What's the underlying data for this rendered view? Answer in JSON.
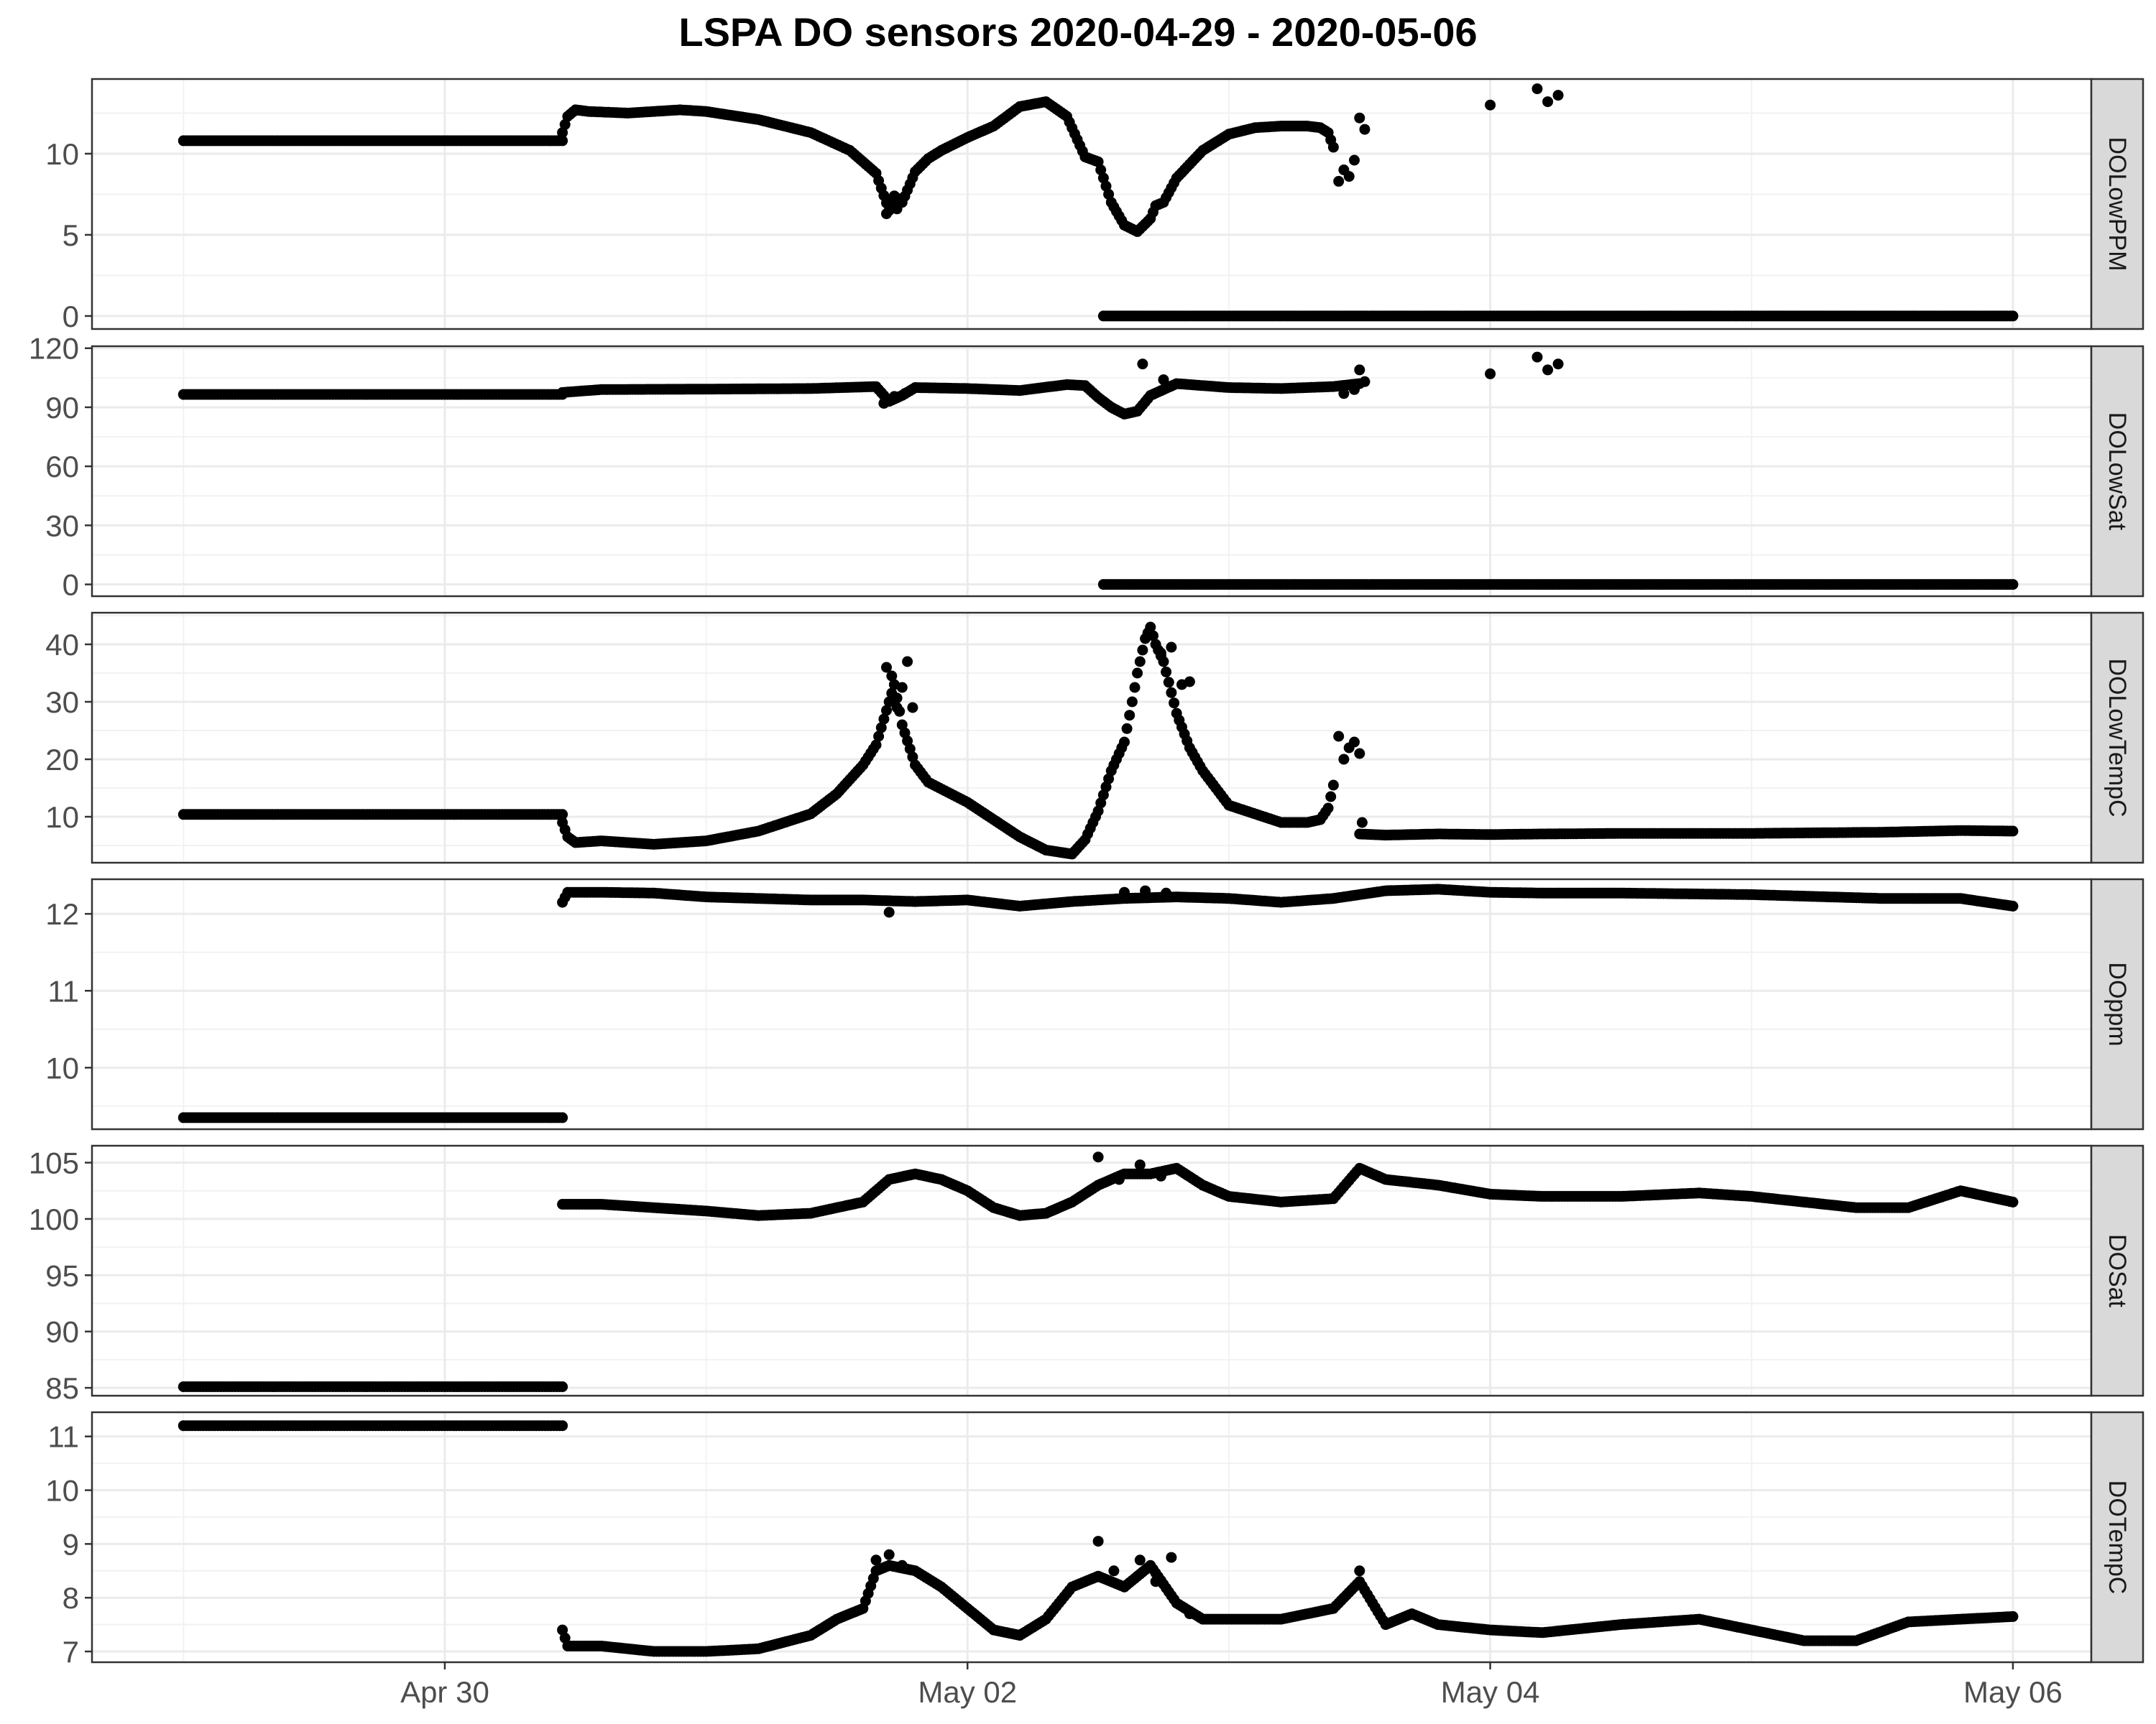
{
  "chart_data": {
    "type": "scatter",
    "title": "LSPA DO sensors 2020-04-29 - 2020-05-06",
    "xlabel": "",
    "ylabel": "",
    "x_unit": "days since 2020-04-29 00:00",
    "x_ticks": [
      {
        "x": 1,
        "label": "Apr 30"
      },
      {
        "x": 3,
        "label": "May 02"
      },
      {
        "x": 5,
        "label": "May 04"
      },
      {
        "x": 7,
        "label": "May 06"
      }
    ],
    "xlim": [
      -0.35,
      7.3
    ],
    "grid": true,
    "point_color": "#000000",
    "strip_fill": "#d9d9d9",
    "panels": [
      {
        "name": "DOLowPPM",
        "ylim": [
          -0.8,
          14.6
        ],
        "y_ticks": [
          0,
          5,
          10
        ],
        "segments": [
          {
            "x": [
              0.0,
              1.45
            ],
            "y": [
              10.8,
              10.8
            ]
          },
          {
            "x": [
              1.45,
              1.47,
              1.5,
              1.55,
              1.7,
              1.9,
              2.0,
              2.2,
              2.4,
              2.55,
              2.65,
              2.7,
              2.72,
              2.75,
              2.8,
              2.85,
              2.9,
              3.0,
              3.1,
              3.2,
              3.3,
              3.38,
              3.45,
              3.5,
              3.55,
              3.6,
              3.65,
              3.7,
              3.72,
              3.75,
              3.8,
              3.9,
              4.0,
              4.1,
              4.2,
              4.3,
              4.35,
              4.38,
              4.4
            ],
            "y": [
              11.3,
              12.3,
              12.7,
              12.6,
              12.5,
              12.7,
              12.6,
              12.1,
              11.3,
              10.2,
              8.8,
              6.5,
              7.4,
              7.0,
              8.9,
              9.7,
              10.2,
              11.0,
              11.7,
              12.9,
              13.2,
              12.3,
              9.8,
              9.5,
              7.0,
              5.6,
              5.2,
              6.0,
              6.8,
              7.0,
              8.5,
              10.2,
              11.2,
              11.6,
              11.7,
              11.7,
              11.6,
              11.3,
              10.4
            ]
          },
          {
            "x": [
              3.52,
              7.0
            ],
            "y": [
              0.0,
              0.0
            ]
          }
        ],
        "scatter": [
          {
            "x": 2.69,
            "y": 6.3
          },
          {
            "x": 2.71,
            "y": 7.2
          },
          {
            "x": 2.73,
            "y": 6.6
          },
          {
            "x": 4.42,
            "y": 8.3
          },
          {
            "x": 4.44,
            "y": 9.0
          },
          {
            "x": 4.46,
            "y": 8.6
          },
          {
            "x": 4.48,
            "y": 9.6
          },
          {
            "x": 4.5,
            "y": 12.2
          },
          {
            "x": 4.52,
            "y": 11.5
          },
          {
            "x": 5.0,
            "y": 13.0
          },
          {
            "x": 5.18,
            "y": 14.0
          },
          {
            "x": 5.22,
            "y": 13.2
          },
          {
            "x": 5.26,
            "y": 13.6
          }
        ]
      },
      {
        "name": "DOLowSat",
        "ylim": [
          -6,
          121
        ],
        "y_ticks": [
          0,
          30,
          60,
          90,
          120
        ],
        "segments": [
          {
            "x": [
              0.0,
              1.45
            ],
            "y": [
              96.5,
              96.5
            ]
          },
          {
            "x": [
              1.45,
              1.6,
              2.0,
              2.4,
              2.65,
              2.7,
              2.75,
              2.8,
              3.0,
              3.2,
              3.38,
              3.45,
              3.5,
              3.55,
              3.6,
              3.65,
              3.7,
              3.8,
              4.0,
              4.2,
              4.4,
              4.5
            ],
            "y": [
              97.5,
              99.0,
              99.2,
              99.5,
              100.5,
              93.0,
              96.0,
              100.0,
              99.5,
              98.5,
              101.5,
              101.0,
              95.0,
              90.0,
              86.5,
              88.0,
              96.0,
              102.0,
              100.0,
              99.5,
              100.5,
              102.0
            ]
          },
          {
            "x": [
              3.52,
              7.0
            ],
            "y": [
              0.0,
              0.0
            ]
          }
        ],
        "scatter": [
          {
            "x": 2.68,
            "y": 92.0
          },
          {
            "x": 2.72,
            "y": 95.5
          },
          {
            "x": 2.76,
            "y": 97.0
          },
          {
            "x": 3.67,
            "y": 112.0
          },
          {
            "x": 3.75,
            "y": 104.0
          },
          {
            "x": 4.44,
            "y": 97.0
          },
          {
            "x": 4.48,
            "y": 99.0
          },
          {
            "x": 4.5,
            "y": 109.0
          },
          {
            "x": 4.52,
            "y": 103.0
          },
          {
            "x": 5.0,
            "y": 107.0
          },
          {
            "x": 5.18,
            "y": 115.5
          },
          {
            "x": 5.22,
            "y": 109.0
          },
          {
            "x": 5.26,
            "y": 112.0
          }
        ]
      },
      {
        "name": "DOLowTempC",
        "ylim": [
          2,
          45.5
        ],
        "y_ticks": [
          10,
          20,
          30,
          40
        ],
        "segments": [
          {
            "x": [
              0.0,
              1.45
            ],
            "y": [
              10.4,
              10.4
            ]
          },
          {
            "x": [
              1.45,
              1.47,
              1.5,
              1.6,
              1.8,
              2.0,
              2.2,
              2.4,
              2.5,
              2.6,
              2.65,
              2.68,
              2.7,
              2.72,
              2.75,
              2.8,
              2.85,
              3.0,
              3.1,
              3.2,
              3.3,
              3.4,
              3.45,
              3.5,
              3.55,
              3.6,
              3.63,
              3.65,
              3.68,
              3.7,
              3.72,
              3.75,
              3.8,
              3.85,
              3.9,
              4.0,
              4.2,
              4.3,
              4.35,
              4.38,
              4.4
            ],
            "y": [
              9.0,
              6.5,
              5.5,
              5.8,
              5.2,
              5.8,
              7.5,
              10.5,
              14.0,
              19.0,
              22.5,
              27.0,
              30.0,
              33.0,
              26.0,
              19.0,
              16.0,
              12.5,
              9.5,
              6.5,
              4.2,
              3.5,
              6.0,
              11.0,
              18.0,
              23.0,
              30.0,
              35.0,
              41.0,
              43.0,
              40.0,
              37.0,
              28.0,
              22.0,
              18.0,
              12.0,
              9.0,
              9.0,
              9.5,
              11.5,
              15.5
            ]
          },
          {
            "x": [
              4.5,
              4.6,
              4.8,
              5.0,
              5.2,
              5.5,
              6.0,
              6.5,
              6.8,
              7.0
            ],
            "y": [
              7.0,
              6.8,
              7.0,
              6.9,
              7.0,
              7.1,
              7.1,
              7.3,
              7.6,
              7.5
            ]
          }
        ],
        "scatter": [
          {
            "x": 2.69,
            "y": 36.0
          },
          {
            "x": 2.71,
            "y": 34.5
          },
          {
            "x": 2.73,
            "y": 29.0
          },
          {
            "x": 2.75,
            "y": 32.5
          },
          {
            "x": 2.77,
            "y": 37.0
          },
          {
            "x": 2.79,
            "y": 29.0
          },
          {
            "x": 3.74,
            "y": 38.5
          },
          {
            "x": 3.78,
            "y": 39.5
          },
          {
            "x": 3.82,
            "y": 33.0
          },
          {
            "x": 3.85,
            "y": 33.5
          },
          {
            "x": 4.42,
            "y": 24.0
          },
          {
            "x": 4.44,
            "y": 20.0
          },
          {
            "x": 4.46,
            "y": 22.0
          },
          {
            "x": 4.48,
            "y": 23.0
          },
          {
            "x": 4.5,
            "y": 21.0
          },
          {
            "x": 4.51,
            "y": 9.0
          }
        ]
      },
      {
        "name": "DOppm",
        "ylim": [
          9.2,
          12.45
        ],
        "y_ticks": [
          10,
          11,
          12
        ],
        "segments": [
          {
            "x": [
              0.0,
              1.45
            ],
            "y": [
              9.35,
              9.35
            ]
          },
          {
            "x": [
              1.45,
              1.47,
              1.6,
              1.8,
              2.0,
              2.2,
              2.4,
              2.6,
              2.8,
              3.0,
              3.2,
              3.4,
              3.6,
              3.8,
              4.0,
              4.2,
              4.4,
              4.6,
              4.8,
              5.0,
              5.2,
              5.5,
              6.0,
              6.5,
              6.8,
              7.0
            ],
            "y": [
              12.15,
              12.28,
              12.28,
              12.27,
              12.22,
              12.2,
              12.18,
              12.18,
              12.16,
              12.18,
              12.1,
              12.16,
              12.2,
              12.22,
              12.2,
              12.15,
              12.2,
              12.3,
              12.32,
              12.28,
              12.27,
              12.27,
              12.25,
              12.2,
              12.2,
              12.1
            ]
          }
        ],
        "scatter": [
          {
            "x": 2.7,
            "y": 12.02
          },
          {
            "x": 3.6,
            "y": 12.28
          },
          {
            "x": 3.68,
            "y": 12.3
          },
          {
            "x": 3.76,
            "y": 12.27
          }
        ]
      },
      {
        "name": "DOSat",
        "ylim": [
          84.3,
          106.5
        ],
        "y_ticks": [
          85,
          90,
          95,
          100,
          105
        ],
        "segments": [
          {
            "x": [
              0.0,
              1.45
            ],
            "y": [
              85.1,
              85.1
            ]
          },
          {
            "x": [
              1.45,
              1.6,
              1.8,
              2.0,
              2.2,
              2.4,
              2.6,
              2.7,
              2.8,
              2.9,
              3.0,
              3.1,
              3.2,
              3.3,
              3.4,
              3.5,
              3.6,
              3.7,
              3.8,
              3.9,
              4.0,
              4.2,
              4.4,
              4.5,
              4.6,
              4.8,
              5.0,
              5.2,
              5.5,
              5.8,
              6.0,
              6.2,
              6.4,
              6.6,
              6.8,
              7.0
            ],
            "y": [
              101.3,
              101.3,
              101.0,
              100.7,
              100.3,
              100.5,
              101.5,
              103.5,
              104.0,
              103.5,
              102.5,
              101.0,
              100.3,
              100.5,
              101.5,
              103.0,
              104.0,
              104.0,
              104.5,
              103.0,
              102.0,
              101.5,
              101.8,
              104.5,
              103.5,
              103.0,
              102.2,
              102.0,
              102.0,
              102.3,
              102.0,
              101.5,
              101.0,
              101.0,
              102.5,
              101.5
            ]
          }
        ],
        "scatter": [
          {
            "x": 3.5,
            "y": 105.5
          },
          {
            "x": 3.58,
            "y": 103.5
          },
          {
            "x": 3.66,
            "y": 104.8
          },
          {
            "x": 3.74,
            "y": 103.8
          }
        ]
      },
      {
        "name": "DOTempC",
        "ylim": [
          6.8,
          11.45
        ],
        "y_ticks": [
          7,
          8,
          9,
          10,
          11
        ],
        "segments": [
          {
            "x": [
              0.0,
              1.45
            ],
            "y": [
              11.2,
              11.2
            ]
          },
          {
            "x": [
              1.45,
              1.47,
              1.6,
              1.8,
              2.0,
              2.2,
              2.4,
              2.5,
              2.6,
              2.65,
              2.7,
              2.8,
              2.9,
              3.0,
              3.1,
              3.2,
              3.3,
              3.4,
              3.5,
              3.6,
              3.7,
              3.8,
              3.9,
              4.0,
              4.2,
              4.4,
              4.5,
              4.6,
              4.7,
              4.8,
              5.0,
              5.2,
              5.5,
              5.8,
              6.0,
              6.2,
              6.4,
              6.6,
              6.8,
              7.0
            ],
            "y": [
              7.4,
              7.1,
              7.1,
              7.0,
              7.0,
              7.05,
              7.3,
              7.6,
              7.8,
              8.5,
              8.6,
              8.5,
              8.2,
              7.8,
              7.4,
              7.3,
              7.6,
              8.2,
              8.4,
              8.2,
              8.6,
              7.9,
              7.6,
              7.6,
              7.6,
              7.8,
              8.3,
              7.5,
              7.7,
              7.5,
              7.4,
              7.35,
              7.5,
              7.6,
              7.4,
              7.2,
              7.2,
              7.55,
              7.6,
              7.65
            ]
          }
        ],
        "scatter": [
          {
            "x": 2.65,
            "y": 8.7
          },
          {
            "x": 2.7,
            "y": 8.8
          },
          {
            "x": 2.75,
            "y": 8.6
          },
          {
            "x": 3.5,
            "y": 9.05
          },
          {
            "x": 3.56,
            "y": 8.5
          },
          {
            "x": 3.6,
            "y": 8.2
          },
          {
            "x": 3.66,
            "y": 8.7
          },
          {
            "x": 3.72,
            "y": 8.3
          },
          {
            "x": 3.78,
            "y": 8.75
          },
          {
            "x": 3.85,
            "y": 7.7
          },
          {
            "x": 4.5,
            "y": 8.5
          }
        ]
      }
    ]
  }
}
